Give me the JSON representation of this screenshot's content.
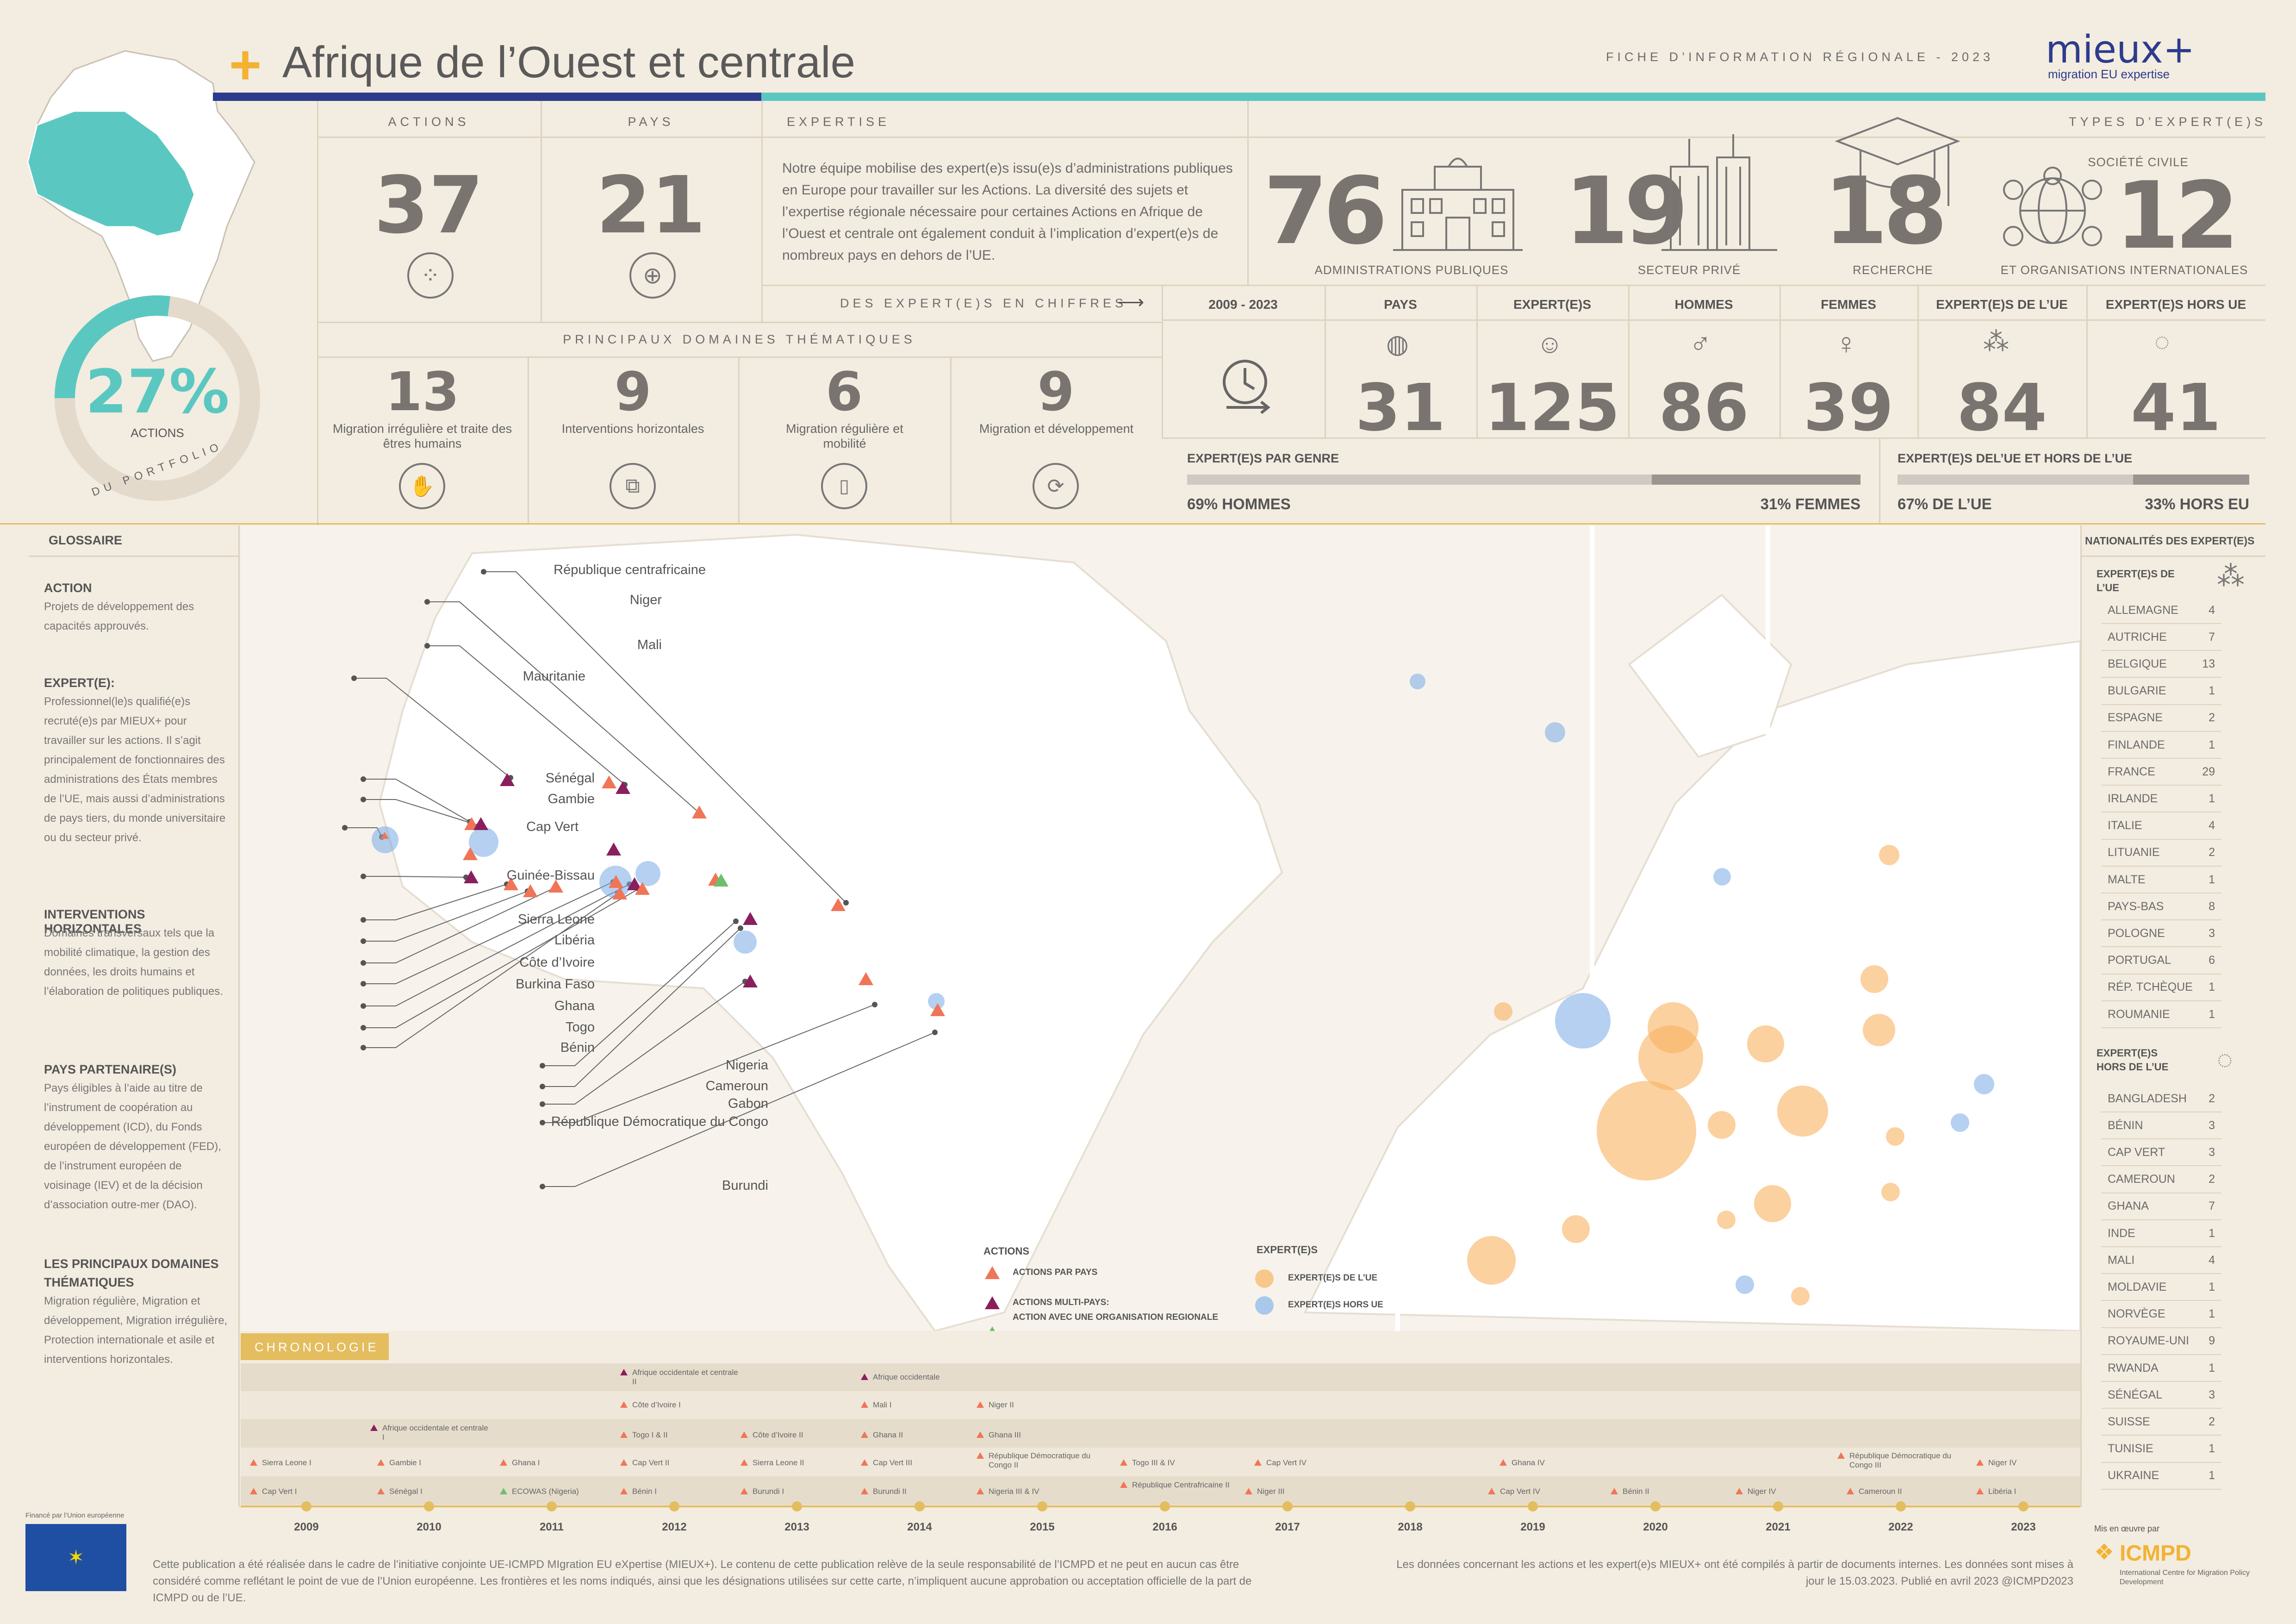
{
  "header": {
    "title": "Afrique de l’Ouest et centrale",
    "subtitle": "FICHE D’INFORMATION RÉGIONALE - 2023",
    "brand": "MIEUX+",
    "brand_text": "mieux+",
    "brand_tag": "migration EU expertise",
    "accent": "#f2b233",
    "teal": "#5ac8c1",
    "navy": "#2d3b8d"
  },
  "donut": {
    "value": "27%",
    "label": "ACTIONS",
    "arc_label": "DU PORTFOLIO",
    "fraction": 0.27
  },
  "stats": {
    "actions": {
      "label": "ACTIONS",
      "value": "37"
    },
    "pays": {
      "label": "PAYS",
      "value": "21"
    },
    "expertise": {
      "label": "EXPERTISE",
      "text": "Notre équipe mobilise des expert(e)s issu(e)s d’administrations publiques en Europe pour travailler sur les Actions. La diversité des sujets et l’expertise régionale nécessaire pour certaines Actions en Afrique de l’Ouest et centrale ont également conduit à l’implication d’expert(e)s de nombreux pays en dehors de l’UE."
    },
    "types_label": "TYPES D’EXPERT(E)S",
    "types": [
      {
        "value": "76",
        "label": "ADMINISTRATIONS PUBLIQUES",
        "icon": "building-icon"
      },
      {
        "value": "19",
        "label": "SECTEUR PRIVÉ",
        "icon": "skyscraper-icon"
      },
      {
        "value": "18",
        "label": "RECHERCHE",
        "icon": "graduation-cap-icon"
      },
      {
        "value": "12",
        "label": "ET ORGANISATIONS INTERNATIONALES",
        "label_top": "SOCIÉTÉ CIVILE",
        "icon": "network-globe-icon"
      }
    ],
    "chiffres_label": "DES EXPERT(E)S EN CHIFFRES",
    "domaines_label": "PRINCIPAUX DOMAINES THÉMATIQUES",
    "domaines": [
      {
        "value": "13",
        "label": "Migration irrégulière et traite des êtres humains",
        "icon": "hand-stop-icon"
      },
      {
        "value": "9",
        "label": "Interventions horizontales",
        "icon": "puzzle-icon"
      },
      {
        "value": "6",
        "label": "Migration régulière et mobilité",
        "icon": "passport-icon"
      },
      {
        "value": "9",
        "label": "Migration et développement",
        "icon": "globe-cycle-icon"
      }
    ],
    "figures": [
      {
        "label": "2009 - 2023",
        "value": "",
        "icon": "clock-arrow-icon"
      },
      {
        "label": "PAYS",
        "value": "31",
        "icon": "world-icon"
      },
      {
        "label": "EXPERT(E)S",
        "value": "125",
        "icon": "head-icon"
      },
      {
        "label": "HOMMES",
        "value": "86",
        "icon": "male-icon"
      },
      {
        "label": "FEMMES",
        "value": "39",
        "icon": "female-icon"
      },
      {
        "label": "EXPERT(E)S DE L’UE",
        "value": "84",
        "icon": "eu-stars-icon"
      },
      {
        "label": "EXPERT(E)S HORS UE",
        "value": "41",
        "icon": "globe-icon"
      }
    ],
    "genre": {
      "label": "EXPERT(E)S PAR GENRE",
      "left": "69% HOMMES",
      "right": "31% FEMMES",
      "fraction": 0.69
    },
    "ue": {
      "label": "EXPERT(E)S DEL’UE ET HORS DE L’UE",
      "left": "67% DE L’UE",
      "right": "33% HORS EU",
      "fraction": 0.67
    }
  },
  "glossaire": {
    "title": "GLOSSAIRE",
    "items": [
      {
        "h": "ACTION",
        "p": "Projets de développement des capacités approuvés."
      },
      {
        "h": "EXPERT(E):",
        "p": "Professionnel(le)s qualifié(e)s recruté(e)s par MIEUX+ pour travailler sur les actions. Il s’agit principalement de fonctionnaires des administrations des États membres de l’UE, mais aussi d’administrations de pays tiers, du monde universitaire ou du secteur privé."
      },
      {
        "h": "INTERVENTIONS HORIZONTALES",
        "p": "Domaines transversaux tels que la mobilité climatique, la gestion des données, les droits humains et l’élaboration de politiques publiques."
      },
      {
        "h": "PAYS PARTENAIRE(S)",
        "p": "Pays éligibles à l’aide au titre de l’instrument de coopération au développement (ICD), du Fonds européen de développement (FED), de l’instrument européen de voisinage (IEV) et de la décision d’association outre-mer (DAO)."
      },
      {
        "h": "LES PRINCIPAUX DOMAINES THÉMATIQUES",
        "p": "Migration régulière, Migration et développement, Migration irrégulière, Protection internationale et asile et interventions horizontales."
      }
    ]
  },
  "map": {
    "labels": [
      "République centrafricaine",
      "Niger",
      "Mali",
      "Mauritanie",
      "Sénégal",
      "Gambie",
      "Cap Vert",
      "Guinée-Bissau",
      "Sierra Leone",
      "Libéria",
      "Côte d’Ivoire",
      "Burkina Faso",
      "Ghana",
      "Togo",
      "Bénin",
      "Nigeria",
      "Cameroun",
      "Gabon",
      "République Démocratique du Congo",
      "Burundi"
    ],
    "legend": {
      "actions_title": "ACTIONS",
      "par_pays": "ACTIONS PAR PAYS",
      "multi": "ACTIONS MULTI-PAYS:",
      "regionale": "ACTION AVEC UNE ORGANISATION REGIONALE",
      "experts_title": "EXPERT(E)S",
      "de_ue": "EXPERT(E)S DE L’UE",
      "hors_ue": "EXPERT(E)S HORS UE"
    }
  },
  "nationalites": {
    "title": "NATIONALITÉS DES EXPERT(E)S",
    "ue_title": "EXPERT(E)S DE L’UE",
    "ue": [
      [
        "ALLEMAGNE",
        "4"
      ],
      [
        "AUTRICHE",
        "7"
      ],
      [
        "BELGIQUE",
        "13"
      ],
      [
        "BULGARIE",
        "1"
      ],
      [
        "ESPAGNE",
        "2"
      ],
      [
        "FINLANDE",
        "1"
      ],
      [
        "FRANCE",
        "29"
      ],
      [
        "IRLANDE",
        "1"
      ],
      [
        "ITALIE",
        "4"
      ],
      [
        "LITUANIE",
        "2"
      ],
      [
        "MALTE",
        "1"
      ],
      [
        "PAYS-BAS",
        "8"
      ],
      [
        "POLOGNE",
        "3"
      ],
      [
        "PORTUGAL",
        "6"
      ],
      [
        "RÉP. TCHÈQUE",
        "1"
      ],
      [
        "ROUMANIE",
        "1"
      ]
    ],
    "hors_title": "EXPERT(E)S HORS DE L’UE",
    "hors": [
      [
        "BANGLADESH",
        "2"
      ],
      [
        "BÉNIN",
        "3"
      ],
      [
        "CAP VERT",
        "3"
      ],
      [
        "CAMEROUN",
        "2"
      ],
      [
        "GHANA",
        "7"
      ],
      [
        "INDE",
        "1"
      ],
      [
        "MALI",
        "4"
      ],
      [
        "MOLDAVIE",
        "1"
      ],
      [
        "NORVÈGE",
        "1"
      ],
      [
        "ROYAUME-UNI",
        "9"
      ],
      [
        "RWANDA",
        "1"
      ],
      [
        "SÉNÉGAL",
        "3"
      ],
      [
        "SUISSE",
        "2"
      ],
      [
        "TUNISIE",
        "1"
      ],
      [
        "UKRAINE",
        "1"
      ]
    ]
  },
  "chronologie": {
    "title": "CHRONOLOGIE",
    "years": [
      "2009",
      "2010",
      "2011",
      "2012",
      "2013",
      "2014",
      "2015",
      "2016",
      "2017",
      "2018",
      "2019",
      "2020",
      "2021",
      "2022",
      "2023"
    ],
    "items": [
      {
        "t": "Afrique occidentale et centrale II",
        "k": "p"
      },
      {
        "t": "Afrique occidentale",
        "k": "p"
      },
      {
        "t": "Côte d’Ivoire I",
        "k": "o"
      },
      {
        "t": "Mali I",
        "k": "o"
      },
      {
        "t": "Niger II",
        "k": "o"
      },
      {
        "t": "Afrique occidentale et centrale I",
        "k": "p"
      },
      {
        "t": "Togo I & II",
        "k": "o"
      },
      {
        "t": "Côte d’Ivoire II",
        "k": "o"
      },
      {
        "t": "Ghana II",
        "k": "o"
      },
      {
        "t": "Ghana III",
        "k": "o"
      },
      {
        "t": "Sierra Leone I",
        "k": "o"
      },
      {
        "t": "Gambie I",
        "k": "o"
      },
      {
        "t": "Ghana I",
        "k": "o"
      },
      {
        "t": "Cap Vert II",
        "k": "o"
      },
      {
        "t": "Sierra Leone II",
        "k": "o"
      },
      {
        "t": "Cap Vert III",
        "k": "o"
      },
      {
        "t": "République Démocratique du Congo II",
        "k": "o"
      },
      {
        "t": "Togo III & IV",
        "k": "o"
      },
      {
        "t": "Cap Vert IV",
        "k": "o"
      },
      {
        "t": "Ghana IV",
        "k": "o"
      },
      {
        "t": "République Démocratique du Congo III",
        "k": "o"
      },
      {
        "t": "Niger IV",
        "k": "o"
      },
      {
        "t": "Cap Vert I",
        "k": "o"
      },
      {
        "t": "Sénégal I",
        "k": "o"
      },
      {
        "t": "ECOWAS (Nigeria)",
        "k": "g"
      },
      {
        "t": "Bénin I",
        "k": "o"
      },
      {
        "t": "Burundi I",
        "k": "o"
      },
      {
        "t": "Burundi II",
        "k": "o"
      },
      {
        "t": "Nigeria III & IV",
        "k": "o"
      },
      {
        "t": "République Centrafricaine II",
        "k": "o"
      },
      {
        "t": "Niger III",
        "k": "o"
      },
      {
        "t": "Cap Vert IV",
        "k": "o"
      },
      {
        "t": "Bénin II",
        "k": "o"
      },
      {
        "t": "Niger IV",
        "k": "o"
      },
      {
        "t": "Cameroun II",
        "k": "o"
      },
      {
        "t": "Libéria I",
        "k": "o"
      }
    ]
  },
  "footer": {
    "eu_funded": "Financé par l’Union européenne",
    "disclaimer": "Cette publication a été réalisée dans le cadre de l’initiative conjointe UE-ICMPD MIgration EU eXpertise (MIEUX+). Le contenu de cette publication relève de la seule responsabilité de l’ICMPD et ne peut en aucun cas être considéré comme reflétant le point de vue de l’Union européenne. Les frontières et les noms indiqués, ainsi que les désignations utilisées sur cette carte, n’impliquent aucune approbation ou acceptation officielle de la part de ICMPD ou de l’UE.",
    "sources": "Les données concernant les actions et les expert(e)s MIEUX+ ont été compilés à partir de documents internes. Les données sont mises à jour le 15.03.2023. Publié en avril 2023 @ICMPD2023",
    "mis_en_oeuvre": "Mis en œuvre par",
    "icmpd": "ICMPD",
    "icmpd_full": "International Centre for Migration Policy Development"
  }
}
